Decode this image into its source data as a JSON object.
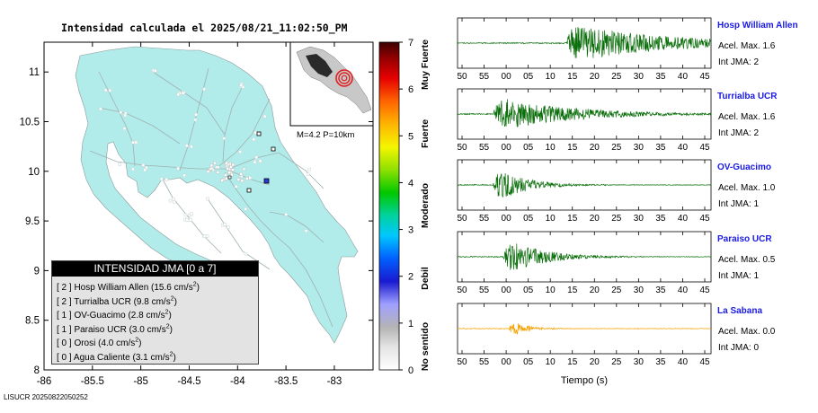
{
  "title": "Intensidad calculada el 2025/08/21_11:02:50_PM",
  "footer": "LISUCR 20250822050252",
  "inset_label": "M=4.2 P=10km",
  "legend": {
    "header": "INTENSIDAD JMA [0 a 7]",
    "rows": [
      {
        "level": "[ 2 ]",
        "name": "Hosp William Allen",
        "pga": "15.6 cm/s",
        "exp": "2"
      },
      {
        "level": "[ 2 ]",
        "name": "Turrialba UCR",
        "pga": "9.8 cm/s",
        "exp": "2"
      },
      {
        "level": "[ 1 ]",
        "name": "OV-Guacimo",
        "pga": "2.8 cm/s",
        "exp": "2"
      },
      {
        "level": "[ 1 ]",
        "name": "Paraiso UCR",
        "pga": "3.0 cm/s",
        "exp": "2"
      },
      {
        "level": "[ 0 ]",
        "name": "Orosi",
        "pga": "4.0 cm/s",
        "exp": "2"
      },
      {
        "level": "[ 0 ]",
        "name": "Agua Caliente",
        "pga": "3.1 cm/s",
        "exp": "2"
      }
    ]
  },
  "colorbar": {
    "ticks": [
      "0",
      "1",
      "2",
      "3",
      "4",
      "5",
      "6",
      "7"
    ],
    "labels": [
      "No sentido",
      "Debil",
      "Moderado",
      "Fuerte",
      "Muy Fuerte"
    ]
  },
  "stations": [
    {
      "name": "Hosp William Allen",
      "accel": "Acel. Max. 1.6",
      "int": "Int JMA: 2",
      "color": "#0a6e0a",
      "onset": 0.43,
      "amp": 0.85,
      "decay": 3.5
    },
    {
      "name": "Turrialba UCR",
      "accel": "Acel. Max. 1.6",
      "int": "Int JMA: 2",
      "color": "#0a6e0a",
      "onset": 0.14,
      "amp": 0.75,
      "decay": 2.8
    },
    {
      "name": "OV-Guacimo",
      "accel": "Acel. Max. 1.0",
      "int": "Int JMA: 1",
      "color": "#0a6e0a",
      "onset": 0.14,
      "amp": 0.8,
      "decay": 1.1
    },
    {
      "name": "Paraiso UCR",
      "accel": "Acel. Max. 0.5",
      "int": "Int JMA: 1",
      "color": "#0a6e0a",
      "onset": 0.18,
      "amp": 0.8,
      "decay": 1.4
    },
    {
      "name": "La Sabana",
      "accel": "Acel. Max. 0.0",
      "int": "Int JMA: 0",
      "color": "#f5a200",
      "onset": 0.2,
      "amp": 0.45,
      "decay": 0.6
    }
  ],
  "chart_data": [
    {
      "type": "map",
      "xlim": [
        -86,
        -82.6
      ],
      "ylim": [
        8,
        11.3
      ],
      "x_ticks": [
        "-86",
        "-85.5",
        "-85",
        "-84.5",
        "-84",
        "-83.5",
        "-83"
      ],
      "y_ticks": [
        "8",
        "8.5",
        "9",
        "9.5",
        "10",
        "10.5",
        "11"
      ]
    },
    {
      "type": "line",
      "xlabel": "Tiempo (s)",
      "x_ticks": [
        "50",
        "55",
        "00",
        "05",
        "10",
        "15",
        "20",
        "25",
        "30",
        "35",
        "40",
        "45"
      ]
    }
  ]
}
